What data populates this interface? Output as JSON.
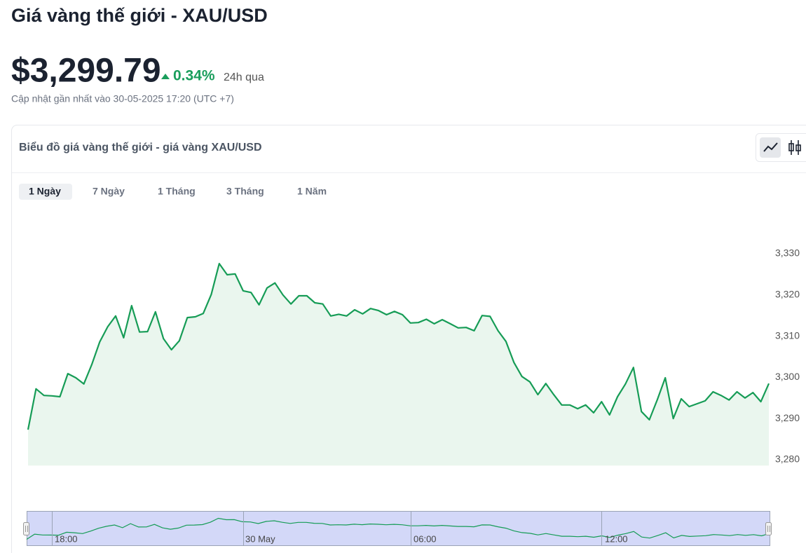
{
  "header": {
    "title": "Giá vàng thế giới - XAU/USD",
    "price": "$3,299.79",
    "change": "0.34%",
    "period": "24h qua",
    "updated": "Cập nhật gần nhất vào 30-05-2025 17:20 (UTC +7)"
  },
  "card": {
    "title": "Biểu đồ giá vàng thế giới - giá vàng XAU/USD",
    "tabs": [
      "1 Ngày",
      "7 Ngày",
      "1 Tháng",
      "3 Tháng",
      "1 Năm"
    ]
  },
  "chart_data": {
    "type": "area",
    "color": "#169c56",
    "values": [
      3287.3,
      3297.2,
      3295.6,
      3295.5,
      3295.3,
      3300.9,
      3299.9,
      3298.4,
      3303.1,
      3308.6,
      3312.3,
      3314.9,
      3309.6,
      3317.4,
      3311.0,
      3311.1,
      3315.9,
      3309.4,
      3306.7,
      3308.9,
      3314.5,
      3314.7,
      3315.5,
      3320.1,
      3327.6,
      3324.9,
      3325.1,
      3321.0,
      3320.6,
      3317.6,
      3321.7,
      3322.9,
      3320.0,
      3317.8,
      3319.8,
      3319.8,
      3318.1,
      3317.8,
      3314.9,
      3315.3,
      3314.9,
      3316.4,
      3315.4,
      3316.7,
      3316.2,
      3315.2,
      3316.0,
      3315.2,
      3313.2,
      3313.3,
      3314.1,
      3313.0,
      3314.0,
      3313.0,
      3312.0,
      3312.1,
      3311.3,
      3315.0,
      3314.8,
      3311.3,
      3308.7,
      3303.6,
      3300.2,
      3298.9,
      3295.8,
      3298.5,
      3295.8,
      3293.3,
      3293.3,
      3292.4,
      3293.3,
      3291.4,
      3294.1,
      3290.9,
      3295.3,
      3298.4,
      3302.4,
      3291.7,
      3289.7,
      3294.6,
      3299.9,
      3290.0,
      3294.8,
      3292.9,
      3293.6,
      3294.3,
      3296.5,
      3295.6,
      3294.5,
      3296.5,
      3295.0,
      3296.3,
      3294.1,
      3298.5
    ],
    "ylim": [
      3278.6,
      3335
    ],
    "yticks": [
      {
        "value": 3280,
        "label": "3,280"
      },
      {
        "value": 3290,
        "label": "3,290"
      },
      {
        "value": 3300,
        "label": "3,300"
      },
      {
        "value": 3310,
        "label": "3,310"
      },
      {
        "value": 3320,
        "label": "3,320"
      },
      {
        "value": 3330,
        "label": "3,330"
      }
    ],
    "navigator_labels": [
      "18:00",
      "30 May",
      "06:00",
      "12:00"
    ]
  }
}
